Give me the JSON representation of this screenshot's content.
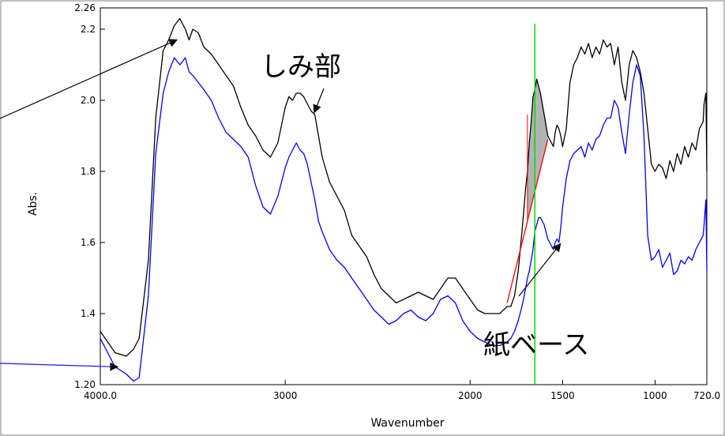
{
  "chart_data": {
    "type": "line",
    "xlabel": "Wavenumber",
    "ylabel": "Abs.",
    "xlim": [
      4000,
      720
    ],
    "ylim": [
      1.2,
      2.26
    ],
    "x_ticks": [
      {
        "value": 4000,
        "label": "4000.0"
      },
      {
        "value": 3000,
        "label": "3000"
      },
      {
        "value": 2000,
        "label": "2000"
      },
      {
        "value": 1500,
        "label": "1500"
      },
      {
        "value": 1000,
        "label": "1000"
      },
      {
        "value": 720,
        "label": "720.0"
      }
    ],
    "y_ticks": [
      {
        "value": 1.2,
        "label": "1.20"
      },
      {
        "value": 1.4,
        "label": "1.4"
      },
      {
        "value": 1.6,
        "label": "1.6"
      },
      {
        "value": 1.8,
        "label": "1.8"
      },
      {
        "value": 2.0,
        "label": "2.0"
      },
      {
        "value": 2.2,
        "label": "2.2"
      },
      {
        "value": 2.26,
        "label": "2.26"
      }
    ],
    "series": [
      {
        "color": "#000000",
        "x": [
          4000,
          3920,
          3860,
          3820,
          3790,
          3740,
          3700,
          3660,
          3630,
          3600,
          3570,
          3540,
          3520,
          3500,
          3470,
          3440,
          3400,
          3360,
          3320,
          3280,
          3240,
          3200,
          3160,
          3120,
          3080,
          3040,
          3000,
          2980,
          2960,
          2940,
          2920,
          2900,
          2880,
          2860,
          2840,
          2820,
          2800,
          2760,
          2720,
          2680,
          2640,
          2600,
          2560,
          2520,
          2480,
          2440,
          2400,
          2360,
          2320,
          2280,
          2240,
          2200,
          2160,
          2120,
          2080,
          2040,
          2000,
          1960,
          1920,
          1880,
          1840,
          1800,
          1780,
          1760,
          1740,
          1720,
          1700,
          1690,
          1680,
          1670,
          1660,
          1650,
          1640,
          1630,
          1620,
          1610,
          1600,
          1590,
          1580,
          1570,
          1560,
          1550,
          1540,
          1530,
          1520,
          1510,
          1500,
          1480,
          1460,
          1440,
          1420,
          1400,
          1380,
          1360,
          1340,
          1320,
          1300,
          1280,
          1260,
          1240,
          1220,
          1200,
          1180,
          1160,
          1140,
          1120,
          1100,
          1080,
          1060,
          1040,
          1020,
          1000,
          980,
          960,
          940,
          920,
          900,
          880,
          860,
          840,
          820,
          800,
          780,
          760,
          740,
          735,
          725,
          720
        ],
        "y": [
          1.35,
          1.29,
          1.28,
          1.3,
          1.33,
          1.55,
          1.95,
          2.14,
          2.17,
          2.21,
          2.23,
          2.2,
          2.17,
          2.2,
          2.19,
          2.15,
          2.13,
          2.1,
          2.07,
          2.04,
          1.98,
          1.93,
          1.9,
          1.86,
          1.84,
          1.88,
          1.98,
          2.01,
          2.0,
          2.02,
          2.02,
          2.01,
          1.99,
          1.97,
          1.96,
          1.9,
          1.84,
          1.77,
          1.73,
          1.69,
          1.62,
          1.59,
          1.56,
          1.51,
          1.47,
          1.45,
          1.43,
          1.44,
          1.45,
          1.46,
          1.45,
          1.44,
          1.47,
          1.5,
          1.5,
          1.47,
          1.44,
          1.41,
          1.4,
          1.4,
          1.4,
          1.42,
          1.42,
          1.45,
          1.52,
          1.63,
          1.75,
          1.8,
          1.88,
          1.94,
          2.01,
          2.03,
          2.06,
          2.04,
          2.02,
          1.99,
          1.96,
          1.93,
          1.9,
          1.89,
          1.88,
          1.87,
          1.91,
          1.93,
          1.92,
          1.9,
          1.87,
          1.92,
          2.05,
          2.1,
          2.12,
          2.15,
          2.13,
          2.16,
          2.12,
          2.15,
          2.13,
          2.17,
          2.15,
          2.16,
          2.1,
          2.15,
          2.05,
          2.0,
          2.1,
          2.14,
          2.12,
          2.08,
          2.02,
          1.92,
          1.82,
          1.8,
          1.82,
          1.81,
          1.78,
          1.83,
          1.8,
          1.85,
          1.82,
          1.87,
          1.84,
          1.88,
          1.86,
          1.92,
          1.94,
          1.99,
          2.02,
          1.8
        ]
      },
      {
        "color": "#0000ff",
        "x": [
          4000,
          3920,
          3860,
          3820,
          3790,
          3740,
          3700,
          3660,
          3630,
          3600,
          3570,
          3540,
          3520,
          3500,
          3470,
          3440,
          3400,
          3360,
          3320,
          3280,
          3240,
          3200,
          3160,
          3120,
          3080,
          3040,
          3000,
          2980,
          2960,
          2940,
          2920,
          2900,
          2880,
          2860,
          2840,
          2820,
          2800,
          2760,
          2720,
          2680,
          2640,
          2600,
          2560,
          2520,
          2480,
          2440,
          2400,
          2360,
          2320,
          2280,
          2240,
          2200,
          2160,
          2120,
          2080,
          2040,
          2000,
          1960,
          1920,
          1880,
          1840,
          1800,
          1780,
          1760,
          1740,
          1720,
          1700,
          1690,
          1680,
          1670,
          1660,
          1650,
          1640,
          1630,
          1620,
          1610,
          1600,
          1590,
          1580,
          1570,
          1560,
          1550,
          1540,
          1530,
          1520,
          1510,
          1500,
          1480,
          1460,
          1440,
          1420,
          1400,
          1380,
          1360,
          1340,
          1320,
          1300,
          1280,
          1260,
          1240,
          1220,
          1200,
          1180,
          1160,
          1140,
          1120,
          1100,
          1080,
          1060,
          1040,
          1020,
          1000,
          980,
          960,
          940,
          920,
          900,
          880,
          860,
          840,
          820,
          800,
          780,
          760,
          740,
          735,
          725,
          720
        ],
        "y": [
          1.33,
          1.25,
          1.23,
          1.21,
          1.22,
          1.45,
          1.85,
          2.02,
          2.08,
          2.12,
          2.1,
          2.12,
          2.08,
          2.07,
          2.05,
          2.03,
          2.0,
          1.95,
          1.91,
          1.89,
          1.87,
          1.84,
          1.76,
          1.7,
          1.68,
          1.73,
          1.81,
          1.84,
          1.86,
          1.88,
          1.86,
          1.85,
          1.82,
          1.77,
          1.72,
          1.66,
          1.63,
          1.58,
          1.55,
          1.53,
          1.5,
          1.47,
          1.44,
          1.41,
          1.39,
          1.37,
          1.38,
          1.4,
          1.41,
          1.39,
          1.38,
          1.4,
          1.44,
          1.45,
          1.43,
          1.38,
          1.35,
          1.33,
          1.32,
          1.31,
          1.31,
          1.32,
          1.33,
          1.35,
          1.38,
          1.42,
          1.47,
          1.5,
          1.52,
          1.55,
          1.58,
          1.63,
          1.65,
          1.67,
          1.67,
          1.66,
          1.65,
          1.63,
          1.61,
          1.6,
          1.59,
          1.58,
          1.6,
          1.61,
          1.6,
          1.64,
          1.7,
          1.78,
          1.83,
          1.85,
          1.86,
          1.87,
          1.84,
          1.88,
          1.86,
          1.89,
          1.9,
          1.93,
          1.95,
          1.95,
          2.0,
          1.98,
          1.91,
          1.85,
          1.96,
          2.05,
          2.1,
          2.07,
          1.9,
          1.62,
          1.55,
          1.56,
          1.58,
          1.53,
          1.55,
          1.57,
          1.51,
          1.52,
          1.55,
          1.54,
          1.56,
          1.55,
          1.58,
          1.6,
          1.62,
          1.65,
          1.72,
          1.52
        ]
      }
    ],
    "marker_line": {
      "x": 1650,
      "color": "#00dd00"
    },
    "baseline": {
      "x": [
        1800,
        1580
      ],
      "y": [
        1.43,
        1.89
      ],
      "color": "#ff0000"
    },
    "shaded_region": {
      "x_from": 1690,
      "x_to": 1580,
      "fill": "#aaaaaa"
    },
    "annotations": [
      {
        "text": "しみ部"
      },
      {
        "text": "紙ベース"
      }
    ]
  }
}
